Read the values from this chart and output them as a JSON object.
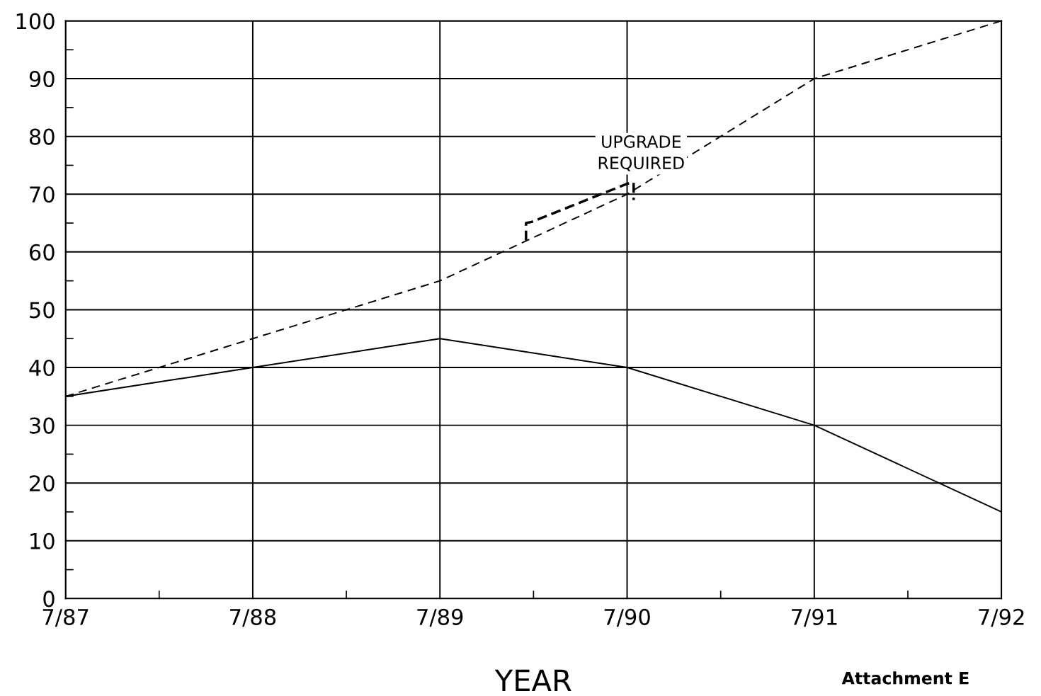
{
  "chart_data": {
    "type": "line",
    "xlabel": "YEAR",
    "categories": [
      "7/87",
      "7/88",
      "7/89",
      "7/90",
      "7/91",
      "7/92"
    ],
    "series": [
      {
        "color": "#000000",
        "line_style": "dashed",
        "values": [
          35,
          45,
          55,
          70,
          90,
          100
        ]
      },
      {
        "color": "#000000",
        "line_style": "solid",
        "values": [
          35,
          40,
          45,
          40,
          30,
          15
        ]
      }
    ],
    "ylim": [
      0,
      100
    ],
    "yticks": [
      0,
      10,
      20,
      30,
      40,
      50,
      60,
      70,
      80,
      90,
      100
    ],
    "grid": true,
    "annotations": [
      "UPGRADE\nREQUIRED",
      "Attachment E"
    ]
  }
}
